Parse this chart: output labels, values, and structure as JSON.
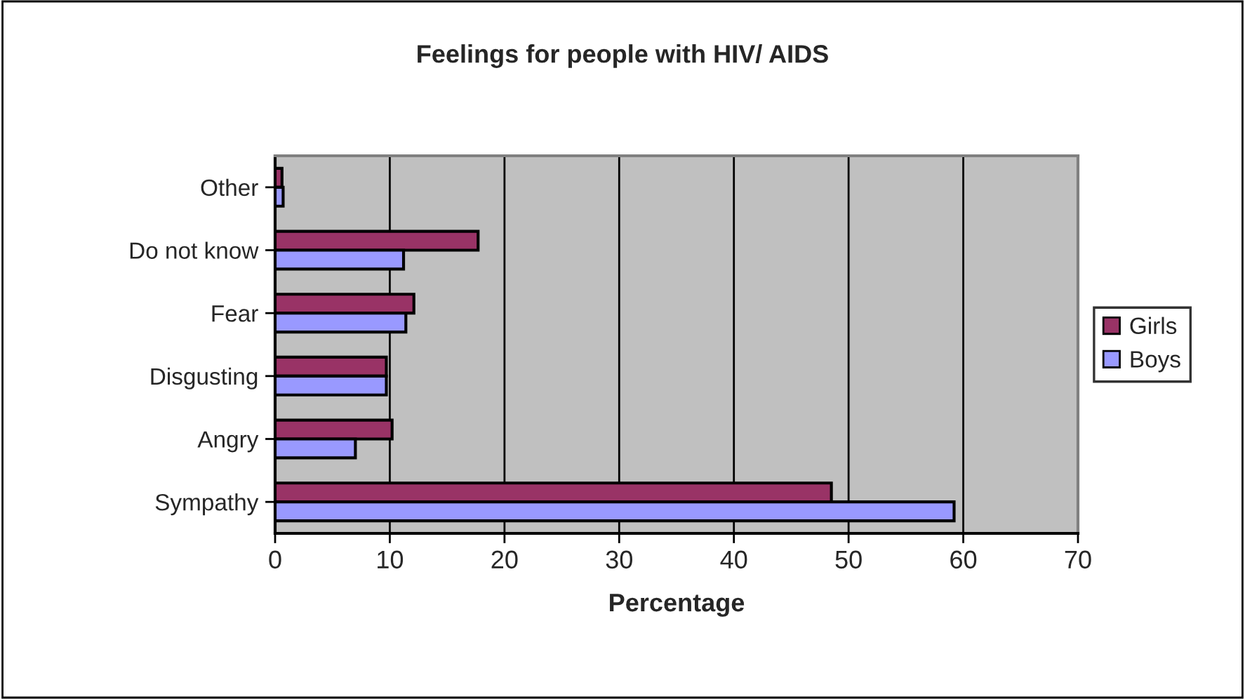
{
  "chart_data": {
    "type": "bar",
    "orientation": "horizontal",
    "title": "Feelings for people with HIV/ AIDS",
    "xlabel": "Percentage",
    "categories": [
      "Other",
      "Do not know",
      "Fear",
      "Disgusting",
      "Angry",
      "Sympathy"
    ],
    "series": [
      {
        "name": "Girls",
        "color": "#993366",
        "values": [
          0.6,
          17.7,
          12.1,
          9.7,
          10.2,
          48.5
        ]
      },
      {
        "name": "Boys",
        "color": "#9999ff",
        "values": [
          0.7,
          11.2,
          11.4,
          9.7,
          7.0,
          59.2
        ]
      }
    ],
    "xlim": [
      0,
      70
    ],
    "xticks": [
      0,
      10,
      20,
      30,
      40,
      50,
      60,
      70
    ],
    "grid": "x",
    "legend": "right"
  }
}
